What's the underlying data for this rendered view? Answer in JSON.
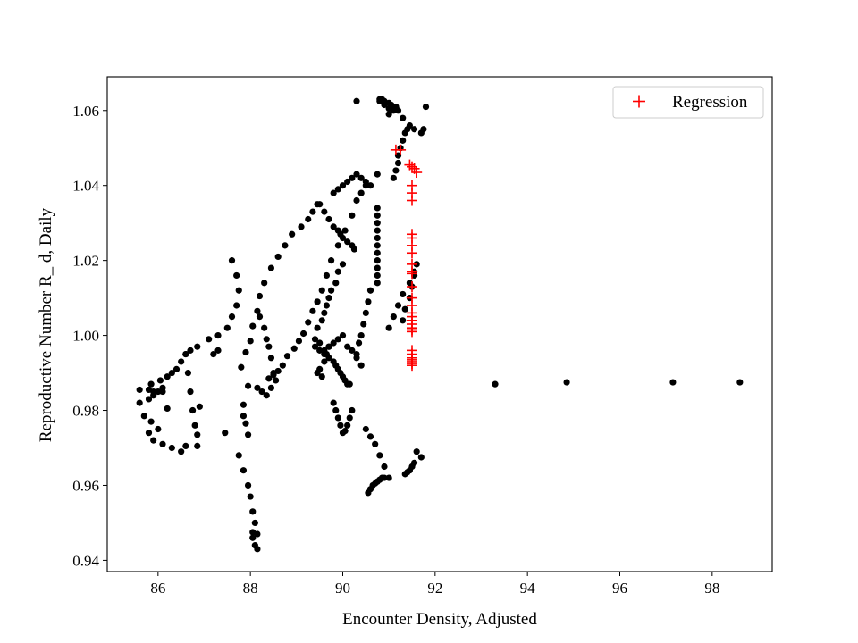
{
  "chart_data": {
    "type": "scatter",
    "title": "",
    "xlabel": "Encounter Density, Adjusted",
    "ylabel": "Reproductive Number R_ d, Daily",
    "xlim": [
      84.9,
      99.3
    ],
    "ylim": [
      0.937,
      1.069
    ],
    "xticks": [
      86,
      88,
      90,
      92,
      94,
      96,
      98
    ],
    "yticks": [
      0.94,
      0.96,
      0.98,
      1.0,
      1.02,
      1.04,
      1.06
    ],
    "ytick_labels": [
      "0.94",
      "0.96",
      "0.98",
      "1.00",
      "1.02",
      "1.04",
      "1.06"
    ],
    "grid": false,
    "legend": {
      "position": "top-right",
      "entries": [
        "Regression"
      ]
    },
    "series": [
      {
        "marker": "dot",
        "color": "#000000",
        "x": [
          85.6,
          85.6,
          85.7,
          85.8,
          85.9,
          86.0,
          86.1,
          86.1,
          85.9,
          85.8,
          85.85,
          86.05,
          86.2,
          86.3,
          86.2,
          86.0,
          85.85,
          85.8,
          85.9,
          86.1,
          86.3,
          86.5,
          86.6,
          86.4,
          86.5,
          86.6,
          86.7,
          86.85,
          87.1,
          87.3,
          87.5,
          87.6,
          87.7,
          87.75,
          87.7,
          87.6,
          86.6,
          86.65,
          86.7,
          86.75,
          86.8,
          86.85,
          86.85,
          86.9,
          87.2,
          87.3,
          87.45,
          87.75,
          87.85,
          87.95,
          88.0,
          88.05,
          88.1,
          88.15,
          88.15,
          88.1,
          88.05,
          88.05,
          87.95,
          87.9,
          87.85,
          87.85,
          87.95,
          87.8,
          87.9,
          88.0,
          88.05,
          88.15,
          88.2,
          88.3,
          88.15,
          88.25,
          88.35,
          88.45,
          88.55,
          88.5,
          88.45,
          88.4,
          88.35,
          88.3,
          88.2,
          88.45,
          88.6,
          88.75,
          88.9,
          89.1,
          89.25,
          89.35,
          89.45,
          88.4,
          88.5,
          88.6,
          88.7,
          88.8,
          88.95,
          89.05,
          89.15,
          89.25,
          89.35,
          89.45,
          89.55,
          89.65,
          89.75,
          89.9,
          90.05,
          90.2,
          90.3,
          90.4,
          90.5,
          89.5,
          89.6,
          89.7,
          89.8,
          89.85,
          89.9,
          89.95,
          90.0,
          90.05,
          90.1,
          90.15,
          89.5,
          89.6,
          89.7,
          89.8,
          89.9,
          89.95,
          90.0,
          90.1,
          90.2,
          90.25,
          89.4,
          89.45,
          89.55,
          89.6,
          89.65,
          89.7,
          89.75,
          89.85,
          89.9,
          90.0,
          89.4,
          89.5,
          89.6,
          89.7,
          89.8,
          89.9,
          90.0,
          90.1,
          90.2,
          90.3,
          90.4,
          89.45,
          89.5,
          89.55,
          89.6,
          89.65,
          89.7,
          89.8,
          89.85,
          89.9,
          89.95,
          90.0,
          90.05,
          90.1,
          90.15,
          90.2,
          89.8,
          89.9,
          90.0,
          90.1,
          90.2,
          90.3,
          90.4,
          90.5,
          90.6,
          90.75,
          90.3,
          90.35,
          90.4,
          90.45,
          90.5,
          90.55,
          90.6,
          90.75,
          90.75,
          90.75,
          90.75,
          90.75,
          90.75,
          90.75,
          90.75,
          90.75,
          90.75,
          90.75,
          90.5,
          90.6,
          90.7,
          90.8,
          90.9,
          91.0,
          91.1,
          91.15,
          91.2,
          91.2,
          91.25,
          91.3,
          91.35,
          91.4,
          91.0,
          91.1,
          91.2,
          91.3,
          91.45,
          91.55,
          91.7,
          91.75,
          91.8,
          90.8,
          90.85,
          90.9,
          91.0,
          91.05,
          91.1,
          91.15,
          90.3,
          90.8,
          90.9,
          91.0,
          91.05,
          91.15,
          91.3,
          91.35,
          91.45,
          91.5,
          91.55,
          91.6,
          91.0,
          91.1,
          91.2,
          91.3,
          91.45,
          91.55,
          90.55,
          90.6,
          90.65,
          90.7,
          90.75,
          90.8,
          90.85,
          90.9,
          91.35,
          91.4,
          91.45,
          91.5,
          91.55,
          91.6,
          91.7,
          93.3,
          94.85,
          97.15,
          98.6
        ],
        "y": [
          0.9855,
          0.982,
          0.9785,
          0.9855,
          0.985,
          0.985,
          0.986,
          0.985,
          0.984,
          0.983,
          0.987,
          0.988,
          0.989,
          0.99,
          0.9805,
          0.975,
          0.977,
          0.974,
          0.972,
          0.971,
          0.97,
          0.969,
          0.9705,
          0.991,
          0.993,
          0.995,
          0.996,
          0.997,
          0.999,
          1.0,
          1.002,
          1.005,
          1.008,
          1.012,
          1.016,
          1.02,
          0.995,
          0.99,
          0.985,
          0.98,
          0.976,
          0.9705,
          0.9735,
          0.981,
          0.995,
          0.996,
          0.974,
          0.968,
          0.964,
          0.96,
          0.957,
          0.953,
          0.95,
          0.947,
          0.943,
          0.944,
          0.946,
          0.9475,
          0.9735,
          0.9765,
          0.9785,
          0.9815,
          0.9865,
          0.9915,
          0.9955,
          0.9985,
          1.0025,
          1.0065,
          1.0105,
          1.014,
          0.986,
          0.985,
          0.984,
          0.986,
          0.988,
          0.99,
          0.994,
          0.997,
          0.999,
          1.002,
          1.005,
          1.018,
          1.021,
          1.024,
          1.027,
          1.029,
          1.031,
          1.033,
          1.035,
          0.9885,
          0.9895,
          0.9905,
          0.992,
          0.9945,
          0.9965,
          0.9985,
          1.0005,
          1.0035,
          1.0065,
          1.009,
          1.012,
          1.016,
          1.02,
          1.024,
          1.028,
          1.032,
          1.036,
          1.038,
          1.04,
          0.996,
          0.995,
          0.994,
          0.993,
          0.992,
          0.991,
          0.99,
          0.989,
          0.988,
          0.987,
          0.987,
          1.035,
          1.033,
          1.031,
          1.029,
          1.028,
          1.027,
          1.026,
          1.025,
          1.024,
          1.023,
          0.999,
          1.002,
          1.004,
          1.006,
          1.008,
          1.01,
          1.012,
          1.014,
          1.017,
          1.019,
          0.997,
          0.998,
          0.996,
          0.997,
          0.998,
          0.999,
          1.0,
          0.997,
          0.996,
          0.994,
          0.992,
          0.99,
          0.991,
          0.989,
          0.993,
          0.995,
          0.997,
          0.982,
          0.98,
          0.978,
          0.976,
          0.974,
          0.9745,
          0.976,
          0.978,
          0.98,
          1.038,
          1.039,
          1.04,
          1.041,
          1.042,
          1.043,
          1.042,
          1.041,
          1.04,
          1.043,
          0.995,
          0.998,
          1.0,
          1.003,
          1.006,
          1.009,
          1.012,
          1.014,
          1.016,
          1.018,
          1.02,
          1.022,
          1.024,
          1.026,
          1.028,
          1.03,
          1.032,
          1.034,
          0.975,
          0.973,
          0.971,
          0.968,
          0.965,
          0.962,
          1.042,
          1.044,
          1.046,
          1.048,
          1.05,
          1.052,
          1.054,
          1.055,
          1.059,
          1.061,
          1.06,
          1.058,
          1.056,
          1.055,
          1.054,
          1.055,
          1.061,
          1.0625,
          1.063,
          1.0625,
          1.062,
          1.061,
          1.06,
          1.061,
          1.0625,
          1.063,
          1.0615,
          1.0605,
          1.0615,
          1.061,
          1.004,
          1.007,
          1.01,
          1.013,
          1.016,
          1.019,
          1.002,
          1.005,
          1.008,
          1.011,
          1.014,
          1.017,
          0.958,
          0.959,
          0.96,
          0.9605,
          0.961,
          0.9615,
          0.962,
          0.962,
          0.963,
          0.9635,
          0.964,
          0.965,
          0.966,
          0.969,
          0.9675,
          0.987,
          0.9875,
          0.9875,
          0.9875
        ]
      },
      {
        "name": "Regression",
        "marker": "plus",
        "color": "#ff0000",
        "x": [
          91.15,
          91.25,
          91.45,
          91.5,
          91.55,
          91.6,
          91.5,
          91.5,
          91.5,
          91.5,
          91.5,
          91.5,
          91.5,
          91.5,
          91.5,
          91.5,
          91.5,
          91.5,
          91.5,
          91.5,
          91.5,
          91.5,
          91.5,
          91.5,
          91.5,
          91.5,
          91.5,
          91.5,
          91.5,
          91.5,
          91.5,
          91.5,
          91.5
        ],
        "y": [
          1.0495,
          1.0495,
          1.0455,
          1.045,
          1.0445,
          1.0435,
          1.04,
          1.038,
          1.036,
          1.027,
          1.026,
          1.024,
          1.022,
          1.019,
          1.017,
          1.0165,
          1.013,
          1.01,
          1.008,
          1.006,
          1.005,
          1.004,
          1.003,
          1.002,
          1.0015,
          1.001,
          0.996,
          0.995,
          0.994,
          0.993,
          0.9925,
          0.992,
          0.9935
        ]
      }
    ]
  }
}
